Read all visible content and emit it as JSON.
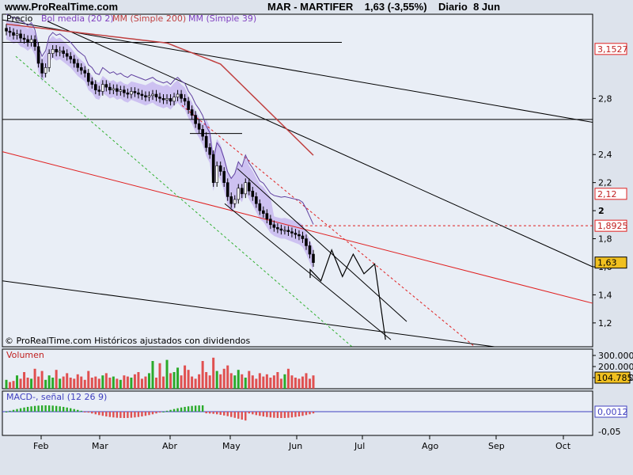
{
  "header": {
    "site": "www.ProRealTime.com",
    "symbol": "MAR - MARTIFER",
    "quote": "1,63 (-3,55%)",
    "period": "Diario",
    "date": "8 Jun"
  },
  "colors": {
    "panel_bg": "#e9eef6",
    "up_bar": "#2aaa2a",
    "down_bar": "#e05050",
    "bollinger_band": "#c8b8f0",
    "ma200": "#c04040",
    "ma39": "#6040a0",
    "trend_red": "#e02020",
    "trend_green": "#30b030",
    "macd_signal": "#4040c0",
    "price_tag": "#f0c020"
  },
  "chart_data": [
    {
      "type": "candlestick",
      "legend": [
        {
          "label": "Precio",
          "color": "#000000"
        },
        {
          "label": "Bol media (20 2)",
          "color": "#8040c0"
        },
        {
          "label": "MM (Simple 200)",
          "color": "#c04040"
        },
        {
          "label": "MM (Simple 39)",
          "color": "#8040c0"
        }
      ],
      "y_ticks": [
        "2,8",
        "2,4",
        "2,2",
        "2",
        "1,8",
        "1,6",
        "1,4",
        "1,2"
      ],
      "ylim": [
        1.03,
        3.4
      ],
      "price_labels": [
        {
          "value": "3,1527",
          "y": 3.1527,
          "style": "red"
        },
        {
          "value": "2,12",
          "y": 2.12,
          "style": "red"
        },
        {
          "value": "1,8925",
          "y": 1.8925,
          "style": "red"
        },
        {
          "value": "1,63",
          "y": 1.63,
          "style": "yellow"
        }
      ],
      "footer": "© ProRealTime.com  Históricos ajustados con dividendos",
      "close": [
        3.28,
        3.27,
        3.25,
        3.26,
        3.23,
        3.22,
        3.2,
        3.22,
        3.17,
        3.05,
        2.98,
        3.02,
        3.12,
        3.15,
        3.13,
        3.14,
        3.12,
        3.1,
        3.08,
        3.05,
        3.02,
        3.0,
        2.98,
        2.92,
        2.9,
        2.86,
        2.85,
        2.9,
        2.88,
        2.86,
        2.87,
        2.85,
        2.86,
        2.84,
        2.83,
        2.85,
        2.84,
        2.83,
        2.82,
        2.81,
        2.82,
        2.83,
        2.81,
        2.8,
        2.79,
        2.8,
        2.78,
        2.81,
        2.83,
        2.8,
        2.78,
        2.72,
        2.68,
        2.62,
        2.58,
        2.53,
        2.45,
        2.4,
        2.2,
        2.32,
        2.28,
        2.2,
        2.1,
        2.05,
        2.08,
        2.16,
        2.12,
        2.2,
        2.14,
        2.1,
        2.05,
        2.0,
        1.98,
        1.94,
        1.9,
        1.88,
        1.87,
        1.86,
        1.86,
        1.85,
        1.84,
        1.83,
        1.82,
        1.8,
        1.75,
        1.69,
        1.63
      ],
      "volume": [
        80,
        60,
        70,
        120,
        90,
        150,
        100,
        90,
        180,
        110,
        160,
        80,
        120,
        100,
        170,
        90,
        110,
        140,
        100,
        90,
        130,
        110,
        80,
        160,
        100,
        110,
        90,
        120,
        140,
        100,
        110,
        90,
        80,
        120,
        110,
        100,
        130,
        150,
        90,
        110,
        140,
        250,
        100,
        230,
        110,
        260,
        140,
        150,
        190,
        120,
        210,
        170,
        110,
        90,
        130,
        250,
        150,
        120,
        280,
        160,
        130,
        180,
        210,
        140,
        120,
        170,
        130,
        100,
        160,
        120,
        90,
        140,
        110,
        130,
        100,
        120,
        150,
        90,
        130,
        180,
        120,
        100,
        90,
        110,
        140,
        90,
        120
      ],
      "volume_ticks": [
        "300.000",
        "200.000",
        "100.000"
      ],
      "volume_label": "104.785",
      "volume_legend": "Volumen",
      "macd_legend": "MACD-, señal (12 26 9)",
      "macd_ticks": [
        "-0,05"
      ],
      "macd_label": "0,0012",
      "x_ticks": [
        "Feb",
        "Mar",
        "Abr",
        "May",
        "Jun",
        "Jul",
        "Ago",
        "Sep",
        "Oct"
      ],
      "projection_path": [
        [
          1.73,
          1.52
        ],
        [
          1.73,
          1.58
        ],
        [
          1.74,
          1.5
        ],
        [
          1.75,
          1.72
        ],
        [
          1.76,
          1.53
        ],
        [
          1.77,
          1.69
        ],
        [
          1.78,
          1.55
        ],
        [
          1.79,
          1.62
        ],
        [
          1.8,
          1.08
        ]
      ]
    }
  ]
}
